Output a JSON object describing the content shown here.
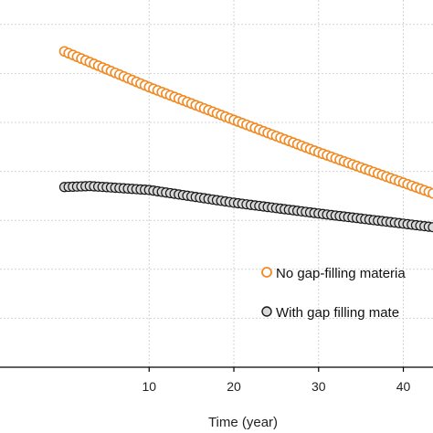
{
  "chart_data": {
    "type": "scatter",
    "xlabel": "Time (year)",
    "ylabel": "",
    "xlim": [
      -7.6,
      43.5
    ],
    "ylim": [
      0,
      7.5
    ],
    "x_ticks": [
      10,
      20,
      30,
      40
    ],
    "y_gridlines": [
      1.0,
      2.0,
      3.0,
      4.0,
      5.0,
      6.0,
      7.0
    ],
    "grid": true,
    "legend_position": "bottom-right",
    "series": [
      {
        "name": "No gap-filling materia",
        "color": "#f08a24",
        "fill": "#ffffff",
        "marker": "circle",
        "x_start": 0.0,
        "x_step": 0.5,
        "count": 88,
        "anchors": [
          [
            0.0,
            6.45
          ],
          [
            10.0,
            5.72
          ],
          [
            20.0,
            5.05
          ],
          [
            30.0,
            4.39
          ],
          [
            43.5,
            3.55
          ]
        ]
      },
      {
        "name": "With gap filling mate",
        "color": "#1a1a1a",
        "fill": "#d9d9d9",
        "marker": "circle",
        "x_start": 0.0,
        "x_step": 0.5,
        "count": 88,
        "anchors": [
          [
            0.0,
            3.68
          ],
          [
            3.0,
            3.7
          ],
          [
            10.0,
            3.62
          ],
          [
            20.0,
            3.36
          ],
          [
            30.0,
            3.14
          ],
          [
            43.5,
            2.86
          ]
        ]
      }
    ]
  }
}
